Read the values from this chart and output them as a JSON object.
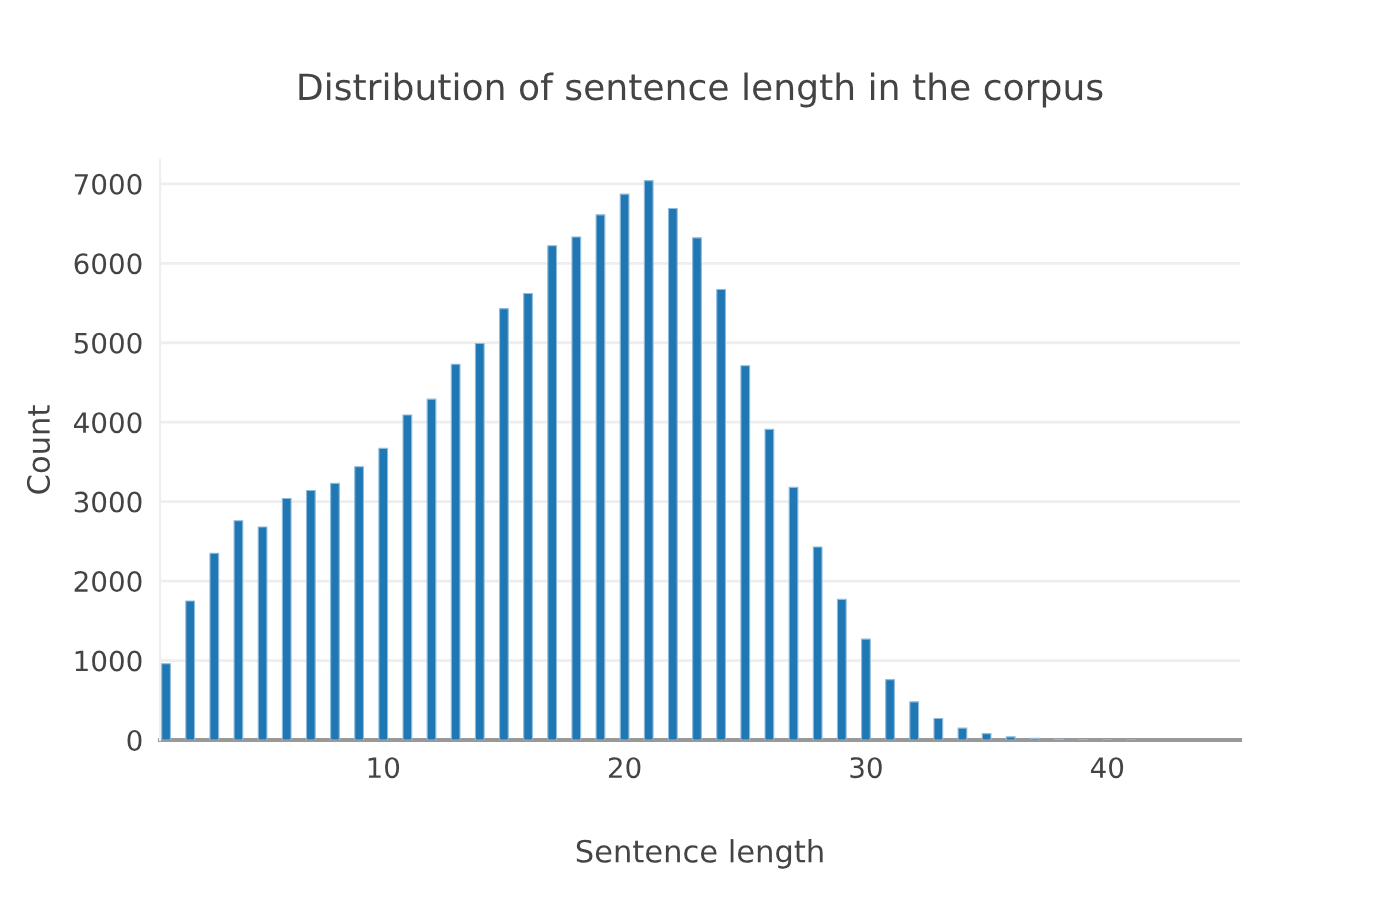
{
  "chart_data": {
    "type": "bar",
    "title": "Distribution of sentence length in the corpus",
    "xlabel": "Sentence length",
    "ylabel": "Count",
    "x": [
      1,
      2,
      3,
      4,
      5,
      6,
      7,
      8,
      9,
      10,
      11,
      12,
      13,
      14,
      15,
      16,
      17,
      18,
      19,
      20,
      21,
      22,
      23,
      24,
      25,
      26,
      27,
      28,
      29,
      30,
      31,
      32,
      33,
      34,
      35,
      36,
      37,
      38,
      39,
      40,
      41
    ],
    "series": [
      {
        "color": "#1f77b4",
        "values": [
          960,
          1750,
          2350,
          2760,
          2680,
          3040,
          3140,
          3230,
          3440,
          3670,
          4090,
          4290,
          4730,
          4990,
          5430,
          5620,
          6220,
          6330,
          6610,
          6870,
          7040,
          6690,
          6320,
          5670,
          4710,
          3910,
          3180,
          2430,
          1770,
          1270,
          760,
          480,
          270,
          150,
          80,
          40,
          20,
          10,
          5,
          3,
          2
        ]
      }
    ],
    "xlim": [
      0.75,
      45.5
    ],
    "xticks": [
      10,
      20,
      30,
      40
    ],
    "ylim": [
      0,
      7300
    ],
    "yticks": [
      0,
      1000,
      2000,
      3000,
      4000,
      5000,
      6000,
      7000
    ],
    "grid": "y",
    "legend": false
  }
}
